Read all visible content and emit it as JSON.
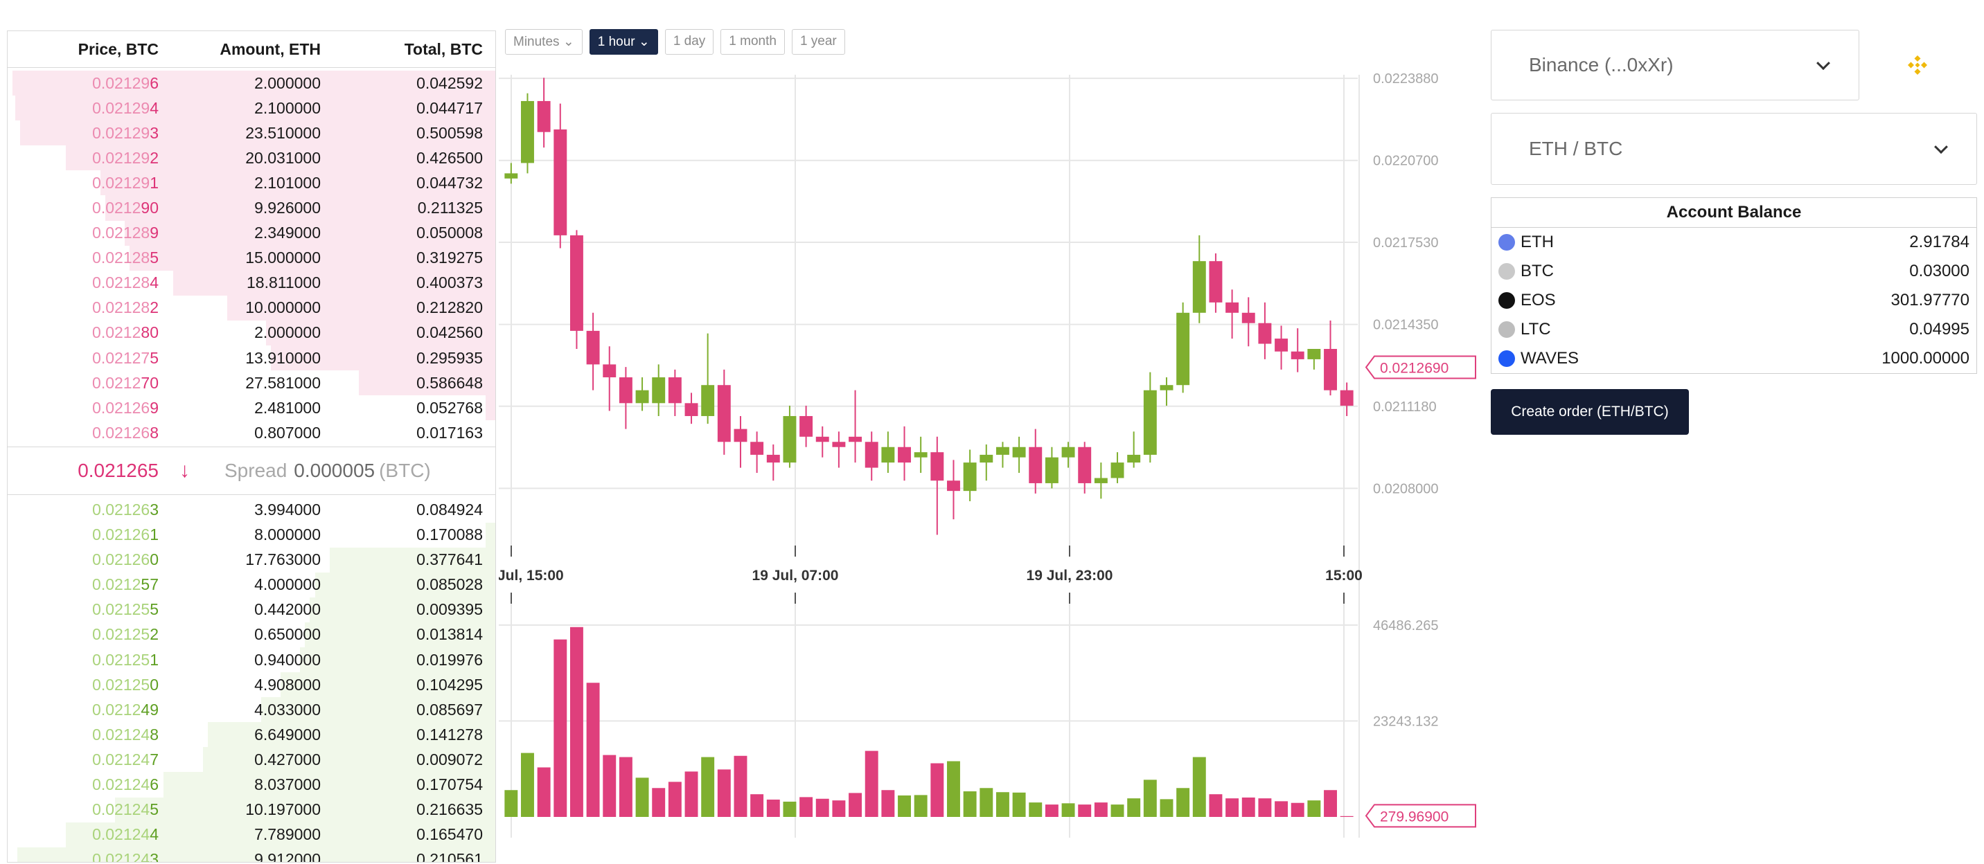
{
  "orderbook": {
    "headers": {
      "price": "Price, BTC",
      "amount": "Amount, ETH",
      "total": "Total, BTC"
    },
    "asks": [
      {
        "price_prefix": "0.02129",
        "price_suffix": "6",
        "amount": "2.000000",
        "total": "0.042592",
        "depth": 0.99
      },
      {
        "price_prefix": "0.02129",
        "price_suffix": "4",
        "amount": "2.100000",
        "total": "0.044717",
        "depth": 0.985
      },
      {
        "price_prefix": "0.02129",
        "price_suffix": "3",
        "amount": "23.510000",
        "total": "0.500598",
        "depth": 0.975
      },
      {
        "price_prefix": "0.02129",
        "price_suffix": "2",
        "amount": "20.031000",
        "total": "0.426500",
        "depth": 0.88
      },
      {
        "price_prefix": "0.02129",
        "price_suffix": "1",
        "amount": "2.101000",
        "total": "0.044732",
        "depth": 0.81
      },
      {
        "price_prefix": "0.0212",
        "price_suffix": "90",
        "amount": "9.926000",
        "total": "0.211325",
        "depth": 0.8
      },
      {
        "price_prefix": "0.02128",
        "price_suffix": "9",
        "amount": "2.349000",
        "total": "0.050008",
        "depth": 0.76
      },
      {
        "price_prefix": "0.02128",
        "price_suffix": "5",
        "amount": "15.000000",
        "total": "0.319275",
        "depth": 0.75
      },
      {
        "price_prefix": "0.02128",
        "price_suffix": "4",
        "amount": "18.811000",
        "total": "0.400373",
        "depth": 0.66
      },
      {
        "price_prefix": "0.02128",
        "price_suffix": "2",
        "amount": "10.000000",
        "total": "0.212820",
        "depth": 0.55
      },
      {
        "price_prefix": "0.0212",
        "price_suffix": "80",
        "amount": "2.000000",
        "total": "0.042560",
        "depth": 0.47
      },
      {
        "price_prefix": "0.02127",
        "price_suffix": "5",
        "amount": "13.910000",
        "total": "0.295935",
        "depth": 0.46
      },
      {
        "price_prefix": "0.0212",
        "price_suffix": "70",
        "amount": "27.581000",
        "total": "0.586648",
        "depth": 0.28
      },
      {
        "price_prefix": "0.02126",
        "price_suffix": "9",
        "amount": "2.481000",
        "total": "0.052768",
        "depth": 0.02
      },
      {
        "price_prefix": "0.02126",
        "price_suffix": "8",
        "amount": "0.807000",
        "total": "0.017163",
        "depth": 0.0
      }
    ],
    "spread": {
      "last_price": "0.021265",
      "arrow": "↓",
      "label": "Spread",
      "value": "0.000005",
      "unit": "(BTC)"
    },
    "bids": [
      {
        "price_prefix": "0.02126",
        "price_suffix": "3",
        "amount": "3.994000",
        "total": "0.084924",
        "depth": 0.0
      },
      {
        "price_prefix": "0.02126",
        "price_suffix": "1",
        "amount": "8.000000",
        "total": "0.170088",
        "depth": 0.02
      },
      {
        "price_prefix": "0.02126",
        "price_suffix": "0",
        "amount": "17.763000",
        "total": "0.377641",
        "depth": 0.34
      },
      {
        "price_prefix": "0.0212",
        "price_suffix": "57",
        "amount": "4.000000",
        "total": "0.085028",
        "depth": 0.37
      },
      {
        "price_prefix": "0.02125",
        "price_suffix": "5",
        "amount": "0.442000",
        "total": "0.009395",
        "depth": 0.38
      },
      {
        "price_prefix": "0.02125",
        "price_suffix": "2",
        "amount": "0.650000",
        "total": "0.013814",
        "depth": 0.39
      },
      {
        "price_prefix": "0.02125",
        "price_suffix": "1",
        "amount": "0.940000",
        "total": "0.019976",
        "depth": 0.4
      },
      {
        "price_prefix": "0.02125",
        "price_suffix": "0",
        "amount": "4.908000",
        "total": "0.104295",
        "depth": 0.44
      },
      {
        "price_prefix": "0.0212",
        "price_suffix": "49",
        "amount": "4.033000",
        "total": "0.085697",
        "depth": 0.48
      },
      {
        "price_prefix": "0.02124",
        "price_suffix": "8",
        "amount": "6.649000",
        "total": "0.141278",
        "depth": 0.59
      },
      {
        "price_prefix": "0.02124",
        "price_suffix": "7",
        "amount": "0.427000",
        "total": "0.009072",
        "depth": 0.6
      },
      {
        "price_prefix": "0.02124",
        "price_suffix": "6",
        "amount": "8.037000",
        "total": "0.170754",
        "depth": 0.68
      },
      {
        "price_prefix": "0.02124",
        "price_suffix": "5",
        "amount": "10.197000",
        "total": "0.216635",
        "depth": 0.78
      },
      {
        "price_prefix": "0.02124",
        "price_suffix": "4",
        "amount": "7.789000",
        "total": "0.165470",
        "depth": 0.88
      },
      {
        "price_prefix": "0.02124",
        "price_suffix": "3",
        "amount": "9.912000",
        "total": "0.210561",
        "depth": 0.98
      }
    ]
  },
  "timeframes": [
    {
      "label": "Minutes",
      "chevron": "⌄",
      "active": false
    },
    {
      "label": "1 hour",
      "chevron": "⌄",
      "active": true
    },
    {
      "label": "1 day",
      "chevron": "",
      "active": false
    },
    {
      "label": "1 month",
      "chevron": "",
      "active": false
    },
    {
      "label": "1 year",
      "chevron": "",
      "active": false
    }
  ],
  "chart_data": [
    {
      "type": "candlestick",
      "title": "",
      "ylim": [
        0.0206,
        0.02245
      ],
      "y_ticks": [
        "0.0223880",
        "0.0220700",
        "0.0217530",
        "0.0214350",
        "0.0211180",
        "0.0208000"
      ],
      "last_price_label": "0.0212690",
      "last_price": 0.021269,
      "x_ticks": [
        "Jul, 15:00",
        "19 Jul, 07:00",
        "19 Jul, 23:00",
        "15:00"
      ],
      "candles": [
        [
          0.022,
          0.02206,
          0.02202,
          0.02198
        ],
        [
          0.02206,
          0.02233,
          0.0223,
          0.02202
        ],
        [
          0.0223,
          0.02239,
          0.02218,
          0.02212
        ],
        [
          0.02219,
          0.02229,
          0.02178,
          0.02173
        ],
        [
          0.02178,
          0.0218,
          0.02141,
          0.02134
        ],
        [
          0.02141,
          0.02148,
          0.02128,
          0.02118
        ],
        [
          0.02128,
          0.02135,
          0.02123,
          0.0211
        ],
        [
          0.02123,
          0.02127,
          0.02113,
          0.02103
        ],
        [
          0.02113,
          0.02123,
          0.02118,
          0.0211
        ],
        [
          0.02113,
          0.02128,
          0.02123,
          0.02108
        ],
        [
          0.02123,
          0.02126,
          0.02113,
          0.02108
        ],
        [
          0.02113,
          0.02117,
          0.02108,
          0.02105
        ],
        [
          0.02108,
          0.0214,
          0.0212,
          0.02105
        ],
        [
          0.0212,
          0.02126,
          0.02098,
          0.02093
        ],
        [
          0.02103,
          0.02108,
          0.02098,
          0.02088
        ],
        [
          0.02098,
          0.02102,
          0.02093,
          0.02086
        ],
        [
          0.02093,
          0.02097,
          0.0209,
          0.02083
        ],
        [
          0.0209,
          0.02112,
          0.02108,
          0.02088
        ],
        [
          0.02108,
          0.02112,
          0.021,
          0.02096
        ],
        [
          0.021,
          0.02104,
          0.02098,
          0.02092
        ],
        [
          0.02098,
          0.02102,
          0.02096,
          0.02088
        ],
        [
          0.021,
          0.02118,
          0.02098,
          0.0209
        ],
        [
          0.02098,
          0.02102,
          0.02088,
          0.02083
        ],
        [
          0.0209,
          0.02102,
          0.02096,
          0.02086
        ],
        [
          0.02096,
          0.02104,
          0.0209,
          0.02083
        ],
        [
          0.02092,
          0.021,
          0.02094,
          0.02086
        ],
        [
          0.02094,
          0.021,
          0.02083,
          0.02062
        ],
        [
          0.02083,
          0.02091,
          0.02079,
          0.02068
        ],
        [
          0.02079,
          0.02095,
          0.0209,
          0.02075
        ],
        [
          0.0209,
          0.02097,
          0.02093,
          0.02083
        ],
        [
          0.02093,
          0.02098,
          0.02096,
          0.02088
        ],
        [
          0.02092,
          0.021,
          0.02096,
          0.02086
        ],
        [
          0.02096,
          0.02103,
          0.02082,
          0.02078
        ],
        [
          0.02082,
          0.02096,
          0.02092,
          0.0208
        ],
        [
          0.02092,
          0.02098,
          0.02096,
          0.02088
        ],
        [
          0.02096,
          0.02098,
          0.02082,
          0.02078
        ],
        [
          0.02082,
          0.0209,
          0.02084,
          0.02076
        ],
        [
          0.02084,
          0.02094,
          0.0209,
          0.02082
        ],
        [
          0.0209,
          0.02102,
          0.02093,
          0.02088
        ],
        [
          0.02093,
          0.02125,
          0.02118,
          0.0209
        ],
        [
          0.02118,
          0.02123,
          0.0212,
          0.02112
        ],
        [
          0.0212,
          0.02152,
          0.02148,
          0.02117
        ],
        [
          0.02148,
          0.02178,
          0.02168,
          0.02144
        ],
        [
          0.02168,
          0.02171,
          0.02152,
          0.02148
        ],
        [
          0.02152,
          0.02157,
          0.02148,
          0.02138
        ],
        [
          0.02148,
          0.02154,
          0.02144,
          0.02135
        ],
        [
          0.02144,
          0.02152,
          0.02136,
          0.0213
        ],
        [
          0.02138,
          0.02143,
          0.02133,
          0.02126
        ],
        [
          0.02133,
          0.02142,
          0.0213,
          0.02125
        ],
        [
          0.0213,
          0.02134,
          0.02134,
          0.02126
        ],
        [
          0.02134,
          0.02145,
          0.02118,
          0.02116
        ],
        [
          0.02118,
          0.02121,
          0.02112,
          0.02108
        ]
      ]
    },
    {
      "type": "bar",
      "title": "",
      "ylim": [
        0,
        52000
      ],
      "y_ticks": [
        "46486.265",
        "23243.132"
      ],
      "last_value_label": "279.96900",
      "last_value": 279.969,
      "values": [
        6500,
        15500,
        12000,
        43000,
        46000,
        32500,
        15000,
        14500,
        9500,
        7000,
        8500,
        11000,
        14500,
        11500,
        14800,
        5500,
        4200,
        3700,
        4800,
        4400,
        4000,
        5800,
        16000,
        6500,
        5200,
        5300,
        13000,
        13500,
        6200,
        7000,
        6000,
        5900,
        3500,
        3000,
        3300,
        3000,
        3500,
        3000,
        4500,
        9000,
        4300,
        7000,
        14500,
        5500,
        4500,
        4700,
        4500,
        3800,
        3400,
        4000,
        6500,
        200
      ],
      "colors": [
        "up",
        "up",
        "down",
        "down",
        "down",
        "down",
        "down",
        "down",
        "up",
        "down",
        "down",
        "down",
        "up",
        "down",
        "down",
        "down",
        "down",
        "up",
        "down",
        "down",
        "down",
        "down",
        "down",
        "down",
        "up",
        "up",
        "down",
        "up",
        "up",
        "up",
        "up",
        "up",
        "up",
        "down",
        "up",
        "down",
        "down",
        "up",
        "up",
        "up",
        "up",
        "up",
        "up",
        "down",
        "down",
        "down",
        "down",
        "down",
        "down",
        "up",
        "down",
        "down"
      ]
    }
  ],
  "right_panel": {
    "exchange_select": "Binance (...0xXr)",
    "pair_select": "ETH / BTC",
    "logo": "binance-diamond-icon",
    "balance": {
      "title": "Account Balance",
      "rows": [
        {
          "coin": "ETH",
          "value": "2.91784",
          "icon": "ethereum-icon",
          "color": "#627eea"
        },
        {
          "coin": "BTC",
          "value": "0.03000",
          "icon": "bitcoin-icon",
          "color": "#c9c9c9"
        },
        {
          "coin": "EOS",
          "value": "301.97770",
          "icon": "eos-icon",
          "color": "#111111"
        },
        {
          "coin": "LTC",
          "value": "0.04995",
          "icon": "litecoin-icon",
          "color": "#bdbdbd"
        },
        {
          "coin": "WAVES",
          "value": "1000.00000",
          "icon": "waves-icon",
          "color": "#1f5af6"
        }
      ]
    },
    "create_order_label": "Create order (ETH/BTC)"
  },
  "colors": {
    "up": "#7faf2f",
    "down": "#df3f7c",
    "grid": "#e6e6e6",
    "axis_text": "#a6a6a6",
    "accent": "#1b2a4a"
  }
}
